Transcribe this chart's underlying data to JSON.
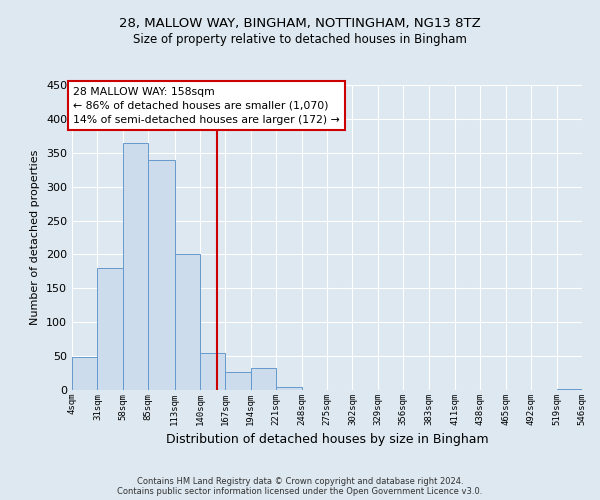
{
  "title1": "28, MALLOW WAY, BINGHAM, NOTTINGHAM, NG13 8TZ",
  "title2": "Size of property relative to detached houses in Bingham",
  "xlabel": "Distribution of detached houses by size in Bingham",
  "ylabel": "Number of detached properties",
  "bin_edges": [
    4,
    31,
    58,
    85,
    113,
    140,
    167,
    194,
    221,
    248,
    275,
    302,
    329,
    356,
    383,
    411,
    438,
    465,
    492,
    519,
    546
  ],
  "bin_labels": [
    "4sqm",
    "31sqm",
    "58sqm",
    "85sqm",
    "113sqm",
    "140sqm",
    "167sqm",
    "194sqm",
    "221sqm",
    "248sqm",
    "275sqm",
    "302sqm",
    "329sqm",
    "356sqm",
    "383sqm",
    "411sqm",
    "438sqm",
    "465sqm",
    "492sqm",
    "519sqm",
    "546sqm"
  ],
  "counts": [
    49,
    180,
    365,
    340,
    200,
    55,
    27,
    33,
    5,
    0,
    0,
    0,
    0,
    0,
    0,
    0,
    0,
    0,
    0,
    1
  ],
  "bar_color": "#ccdcec",
  "bar_edge_color": "#6699cc",
  "vline_x": 158,
  "vline_color": "#cc0000",
  "annotation_line1": "28 MALLOW WAY: 158sqm",
  "annotation_line2": "← 86% of detached houses are smaller (1,070)",
  "annotation_line3": "14% of semi-detached houses are larger (172) →",
  "annotation_box_color": "white",
  "annotation_box_edge_color": "#cc0000",
  "ylim": [
    0,
    450
  ],
  "background_color": "#dde8f0",
  "grid_color": "white",
  "yticks": [
    0,
    50,
    100,
    150,
    200,
    250,
    300,
    350,
    400,
    450
  ],
  "footer1": "Contains HM Land Registry data © Crown copyright and database right 2024.",
  "footer2": "Contains public sector information licensed under the Open Government Licence v3.0."
}
